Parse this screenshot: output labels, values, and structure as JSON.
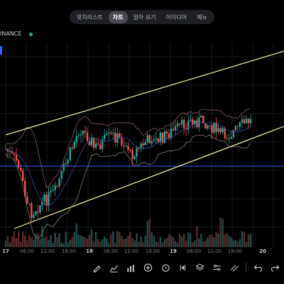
{
  "tabs": [
    {
      "label": "왓치리스트",
      "active": false
    },
    {
      "label": "차트",
      "active": true
    },
    {
      "label": "알아 보기",
      "active": false
    },
    {
      "label": "아이디어",
      "active": false
    },
    {
      "label": "메뉴",
      "active": false
    }
  ],
  "chart": {
    "exchange_label": "INANCE",
    "x_labels": [
      "17",
      "06:00",
      "12:00",
      "18:00",
      "18",
      "06:00",
      "12:00",
      "18:00",
      "19",
      "06:00",
      "12:00",
      "18:00",
      "20"
    ],
    "bold_x_labels": [
      0,
      4,
      8,
      12
    ]
  },
  "toolbar": {
    "icons": [
      "pencil-icon",
      "indicators-icon",
      "compare-icon",
      "add-icon",
      "alert-icon",
      "replay-icon",
      "layers-icon",
      "settings-sliders-icon",
      "trend-lines-icon",
      "undo-icon",
      "redo-icon"
    ]
  },
  "colors": {
    "up": "#26a69a",
    "down": "#ef5350",
    "channel": "#f5f0a0",
    "horizontal_line": "#2962ff",
    "bollinger": "#b2a0a0"
  }
}
